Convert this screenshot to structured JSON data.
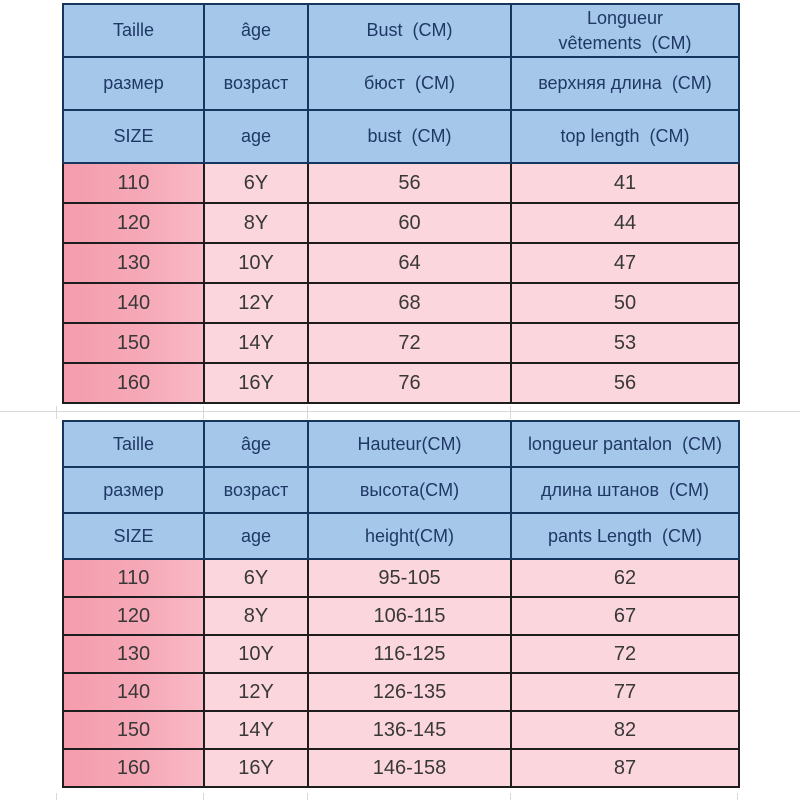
{
  "page": {
    "kind": "clothing-size-chart",
    "background": "#ffffff"
  },
  "colors": {
    "header_bg": "#a5c8ea",
    "header_text": "#1f3864",
    "header_border": "#17365d",
    "data_border": "#1d1d1d",
    "size_column_pink": "#f5a2b2",
    "data_cell_pink": "#fbd6dd",
    "data_text": "#383838",
    "gridline": "#d9d9d9"
  },
  "tables": [
    {
      "name": "top-garment-size-table",
      "headers": [
        [
          "Taille",
          "âge",
          "Bust  (CM)",
          "Longueur\nvêtements  (CM)"
        ],
        [
          "размер",
          "возраст",
          "бюст  (CM)",
          "верхняя длина  (CM)"
        ],
        [
          "SIZE",
          "age",
          "bust  (CM)",
          "top length  (CM)"
        ]
      ],
      "rows": [
        [
          "110",
          "6Y",
          "56",
          "41"
        ],
        [
          "120",
          "8Y",
          "60",
          "44"
        ],
        [
          "130",
          "10Y",
          "64",
          "47"
        ],
        [
          "140",
          "12Y",
          "68",
          "50"
        ],
        [
          "150",
          "14Y",
          "72",
          "53"
        ],
        [
          "160",
          "16Y",
          "76",
          "56"
        ]
      ]
    },
    {
      "name": "pants-size-table",
      "headers": [
        [
          "Taille",
          "âge",
          "Hauteur(CM)",
          "longueur pantalon  (CM)"
        ],
        [
          "размер",
          "возраст",
          "высота(CM)",
          "длина штанов  (CM)"
        ],
        [
          "SIZE",
          "age",
          "height(CM)",
          "pants Length  (CM)"
        ]
      ],
      "rows": [
        [
          "110",
          "6Y",
          "95-105",
          "62"
        ],
        [
          "120",
          "8Y",
          "106-115",
          "67"
        ],
        [
          "130",
          "10Y",
          "116-125",
          "72"
        ],
        [
          "140",
          "12Y",
          "126-135",
          "77"
        ],
        [
          "150",
          "14Y",
          "136-145",
          "82"
        ],
        [
          "160",
          "16Y",
          "146-158",
          "87"
        ]
      ]
    }
  ]
}
